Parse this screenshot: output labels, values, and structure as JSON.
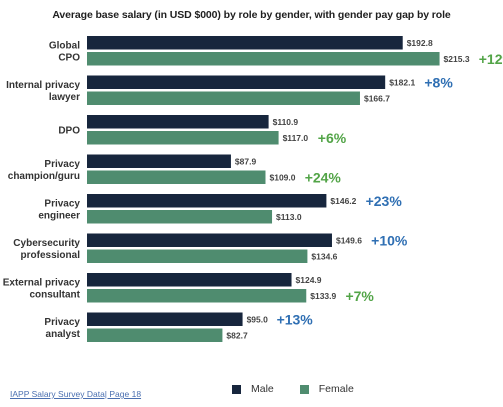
{
  "chart_data": {
    "type": "bar",
    "orientation": "horizontal",
    "title": "Average base salary (in USD $000) by role by gender, with gender pay gap by role",
    "categories": [
      [
        "Global",
        "CPO"
      ],
      [
        "Internal privacy",
        "lawyer"
      ],
      [
        "DPO"
      ],
      [
        "Privacy",
        "champion/guru"
      ],
      [
        "Privacy",
        "engineer"
      ],
      [
        "Cybersecurity",
        "professional"
      ],
      [
        "External privacy",
        "consultant"
      ],
      [
        "Privacy",
        "analyst"
      ]
    ],
    "series": [
      {
        "name": "Male",
        "color": "#17263d",
        "values": [
          192.8,
          182.1,
          110.9,
          87.9,
          146.2,
          149.6,
          124.9,
          95.0
        ],
        "value_labels": [
          "$192.8",
          "$182.1",
          "$110.9",
          "$87.9",
          "$146.2",
          "$149.6",
          "$124.9",
          "$95.0"
        ]
      },
      {
        "name": "Female",
        "color": "#4f8c6f",
        "values": [
          215.3,
          166.7,
          117.0,
          109.0,
          113.0,
          134.6,
          133.9,
          82.7
        ],
        "value_labels": [
          "$215.3",
          "$166.7",
          "$117.0",
          "$109.0",
          "$113.0",
          "$134.6",
          "$133.9",
          "$82.7"
        ]
      }
    ],
    "gap_labels": [
      {
        "text": "+12%",
        "series": "Female",
        "color": "#52a447"
      },
      {
        "text": "+8%",
        "series": "Male",
        "color": "#2f6fb3"
      },
      {
        "text": "+6%",
        "series": "Female",
        "color": "#52a447"
      },
      {
        "text": "+24%",
        "series": "Female",
        "color": "#52a447"
      },
      {
        "text": "+23%",
        "series": "Male",
        "color": "#2f6fb3"
      },
      {
        "text": "+10%",
        "series": "Male",
        "color": "#2f6fb3"
      },
      {
        "text": "+7%",
        "series": "Female",
        "color": "#52a447"
      },
      {
        "text": "+13%",
        "series": "Male",
        "color": "#2f6fb3"
      }
    ],
    "xlim": [
      0,
      230
    ],
    "grid": false,
    "legend_placement": "bottom",
    "legend": [
      "Male",
      "Female"
    ]
  },
  "source_text": "IAPP Salary Survey Data| Page 18"
}
